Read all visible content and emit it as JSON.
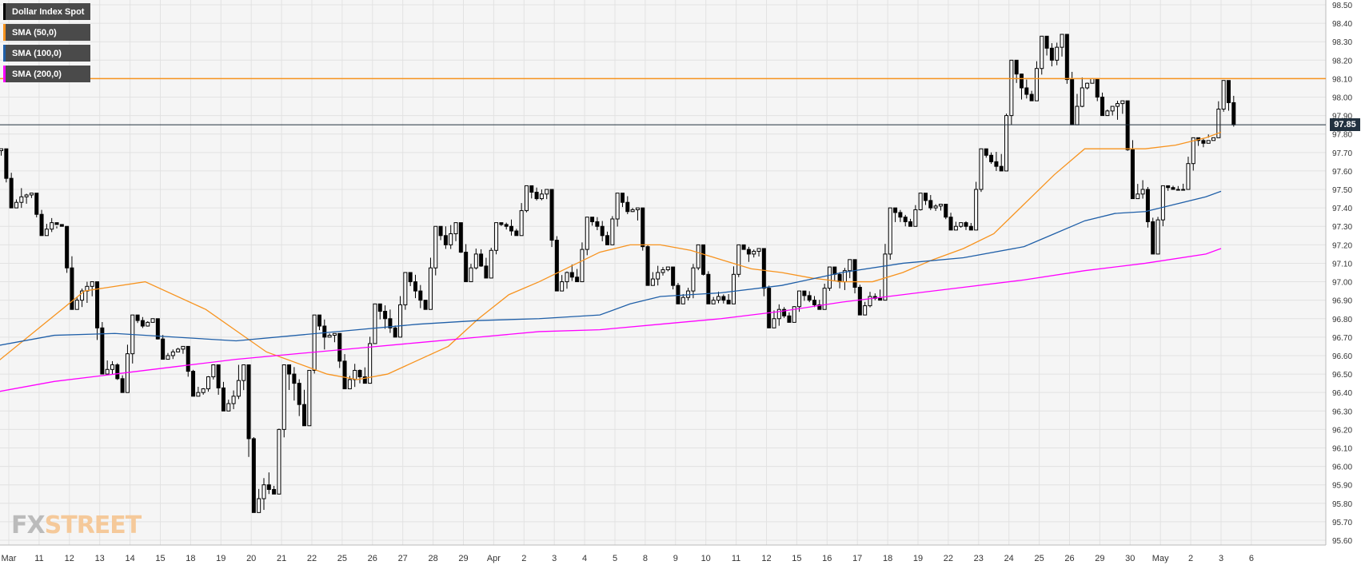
{
  "legend": [
    {
      "label": "Dollar Index Spot",
      "color": "#000000"
    },
    {
      "label": "SMA (50,0)",
      "color": "#f7931e"
    },
    {
      "label": "SMA (100,0)",
      "color": "#1f5fa8"
    },
    {
      "label": "SMA (200,0)",
      "color": "#ff00ff"
    }
  ],
  "logo": {
    "part1": "FX",
    "part2": "STREET"
  },
  "current_price_label": "97.85",
  "chart_data": {
    "type": "candlestick",
    "title": "Dollar Index Spot",
    "ylim": [
      95.6,
      98.5
    ],
    "y_ticks": [
      "95.60",
      "95.70",
      "95.80",
      "95.90",
      "96.00",
      "96.10",
      "96.20",
      "96.30",
      "96.40",
      "96.50",
      "96.60",
      "96.70",
      "96.80",
      "96.90",
      "97.00",
      "97.10",
      "97.20",
      "97.30",
      "97.40",
      "97.50",
      "97.60",
      "97.70",
      "97.80",
      "97.90",
      "98.00",
      "98.10",
      "98.20",
      "98.30",
      "98.40",
      "98.50"
    ],
    "x_ticks": [
      "Mar",
      "11",
      "12",
      "13",
      "14",
      "15",
      "18",
      "19",
      "20",
      "21",
      "22",
      "25",
      "26",
      "27",
      "28",
      "29",
      "Apr",
      "2",
      "3",
      "4",
      "5",
      "8",
      "9",
      "10",
      "11",
      "12",
      "15",
      "16",
      "17",
      "18",
      "19",
      "22",
      "23",
      "24",
      "25",
      "26",
      "29",
      "30",
      "May",
      "2",
      "3",
      "6"
    ],
    "resistance_level": 98.1,
    "current_price": 97.85,
    "grid": true,
    "candles_per_day": 6,
    "daily": [
      {
        "label": "Mar",
        "o": 97.7,
        "h": 97.72,
        "l": 97.4,
        "c": 97.46
      },
      {
        "label": "11",
        "o": 97.46,
        "h": 97.48,
        "l": 97.25,
        "c": 97.32
      },
      {
        "label": "12",
        "o": 97.32,
        "h": 97.3,
        "l": 96.85,
        "c": 96.95
      },
      {
        "label": "13",
        "o": 96.95,
        "h": 97.0,
        "l": 96.5,
        "c": 96.55
      },
      {
        "label": "14",
        "o": 96.55,
        "h": 96.82,
        "l": 96.4,
        "c": 96.76
      },
      {
        "label": "15",
        "o": 96.76,
        "h": 96.8,
        "l": 96.58,
        "c": 96.62
      },
      {
        "label": "18",
        "o": 96.62,
        "h": 96.65,
        "l": 96.38,
        "c": 96.42
      },
      {
        "label": "19",
        "o": 96.42,
        "h": 96.55,
        "l": 96.3,
        "c": 96.38
      },
      {
        "label": "20",
        "o": 96.38,
        "h": 96.55,
        "l": 95.75,
        "c": 95.9
      },
      {
        "label": "21",
        "o": 95.9,
        "h": 96.55,
        "l": 95.85,
        "c": 96.45
      },
      {
        "label": "22",
        "o": 96.45,
        "h": 96.82,
        "l": 96.22,
        "c": 96.7
      },
      {
        "label": "25",
        "o": 96.7,
        "h": 96.72,
        "l": 96.42,
        "c": 96.52
      },
      {
        "label": "26",
        "o": 96.52,
        "h": 96.88,
        "l": 96.45,
        "c": 96.8
      },
      {
        "label": "27",
        "o": 96.8,
        "h": 97.05,
        "l": 96.7,
        "c": 96.95
      },
      {
        "label": "28",
        "o": 96.95,
        "h": 97.3,
        "l": 96.85,
        "c": 97.2
      },
      {
        "label": "29",
        "o": 97.2,
        "h": 97.32,
        "l": 97.0,
        "c": 97.15
      },
      {
        "label": "Apr",
        "o": 97.15,
        "h": 97.32,
        "l": 97.02,
        "c": 97.3
      },
      {
        "label": "2",
        "o": 97.3,
        "h": 97.52,
        "l": 97.25,
        "c": 97.45
      },
      {
        "label": "3",
        "o": 97.45,
        "h": 97.5,
        "l": 96.95,
        "c": 97.05
      },
      {
        "label": "4",
        "o": 97.05,
        "h": 97.35,
        "l": 97.0,
        "c": 97.3
      },
      {
        "label": "5",
        "o": 97.3,
        "h": 97.48,
        "l": 97.2,
        "c": 97.38
      },
      {
        "label": "8",
        "o": 97.38,
        "h": 97.4,
        "l": 96.98,
        "c": 97.05
      },
      {
        "label": "9",
        "o": 97.05,
        "h": 97.08,
        "l": 96.88,
        "c": 96.95
      },
      {
        "label": "10",
        "o": 96.95,
        "h": 97.2,
        "l": 96.88,
        "c": 96.92
      },
      {
        "label": "11",
        "o": 96.92,
        "h": 97.2,
        "l": 96.88,
        "c": 97.15
      },
      {
        "label": "12",
        "o": 97.15,
        "h": 97.18,
        "l": 96.75,
        "c": 96.85
      },
      {
        "label": "15",
        "o": 96.85,
        "h": 96.95,
        "l": 96.78,
        "c": 96.9
      },
      {
        "label": "16",
        "o": 96.9,
        "h": 97.08,
        "l": 96.85,
        "c": 97.0
      },
      {
        "label": "17",
        "o": 97.0,
        "h": 97.12,
        "l": 96.82,
        "c": 96.92
      },
      {
        "label": "18",
        "o": 96.92,
        "h": 97.4,
        "l": 96.9,
        "c": 97.35
      },
      {
        "label": "19",
        "o": 97.35,
        "h": 97.48,
        "l": 97.3,
        "c": 97.4
      },
      {
        "label": "22",
        "o": 97.4,
        "h": 97.42,
        "l": 97.28,
        "c": 97.32
      },
      {
        "label": "23",
        "o": 97.32,
        "h": 97.72,
        "l": 97.28,
        "c": 97.65
      },
      {
        "label": "24",
        "o": 97.65,
        "h": 98.2,
        "l": 97.6,
        "c": 98.05
      },
      {
        "label": "25",
        "o": 98.05,
        "h": 98.33,
        "l": 97.98,
        "c": 98.2
      },
      {
        "label": "26",
        "o": 98.2,
        "h": 98.34,
        "l": 97.85,
        "c": 98.05
      },
      {
        "label": "29",
        "o": 98.05,
        "h": 98.1,
        "l": 97.9,
        "c": 97.95
      },
      {
        "label": "30",
        "o": 97.95,
        "h": 97.98,
        "l": 97.45,
        "c": 97.5
      },
      {
        "label": "May",
        "o": 97.5,
        "h": 97.52,
        "l": 97.15,
        "c": 97.5
      },
      {
        "label": "2",
        "o": 97.5,
        "h": 97.78,
        "l": 97.5,
        "c": 97.75
      },
      {
        "label": "3",
        "o": 97.75,
        "h": 98.09,
        "l": 97.78,
        "c": 97.85
      }
    ],
    "series": [
      {
        "name": "SMA (50,0)",
        "color": "#f7931e",
        "x": [
          0,
          3,
          5,
          7,
          9,
          11,
          12,
          13,
          15,
          16,
          17,
          18,
          19,
          20,
          21,
          22,
          23,
          24,
          25,
          26,
          27,
          28,
          29,
          30,
          31,
          32,
          33,
          34,
          35,
          36,
          37,
          38,
          39,
          40,
          40.5
        ],
        "values": [
          96.55,
          96.95,
          97.0,
          96.85,
          96.62,
          96.5,
          96.47,
          96.5,
          96.65,
          96.8,
          96.93,
          97.0,
          97.08,
          97.16,
          97.2,
          97.2,
          97.17,
          97.12,
          97.07,
          97.05,
          97.02,
          97.0,
          97.0,
          97.05,
          97.12,
          97.18,
          97.26,
          97.42,
          97.58,
          97.72,
          97.72,
          97.72,
          97.74,
          97.78,
          97.81
        ]
      },
      {
        "name": "SMA (100,0)",
        "color": "#1f5fa8",
        "x": [
          0,
          2,
          4,
          6,
          8,
          10,
          12,
          14,
          16,
          18,
          20,
          21,
          22,
          24,
          26,
          28,
          30,
          32,
          34,
          35,
          36,
          37,
          38,
          39,
          40,
          40.5
        ],
        "values": [
          96.65,
          96.71,
          96.72,
          96.7,
          96.68,
          96.71,
          96.74,
          96.77,
          96.79,
          96.8,
          96.82,
          96.88,
          96.92,
          96.94,
          96.98,
          97.05,
          97.1,
          97.13,
          97.19,
          97.26,
          97.33,
          97.37,
          97.38,
          97.42,
          97.46,
          97.49
        ]
      },
      {
        "name": "SMA (200,0)",
        "color": "#ff00ff",
        "x": [
          0,
          2,
          4,
          6,
          8,
          10,
          12,
          14,
          16,
          18,
          20,
          22,
          24,
          26,
          28,
          30,
          32,
          34,
          36,
          38,
          40,
          40.5
        ],
        "values": [
          96.4,
          96.46,
          96.5,
          96.54,
          96.58,
          96.61,
          96.64,
          96.67,
          96.7,
          96.73,
          96.74,
          96.77,
          96.8,
          96.84,
          96.89,
          96.93,
          96.97,
          97.01,
          97.06,
          97.1,
          97.15,
          97.18
        ]
      }
    ]
  }
}
